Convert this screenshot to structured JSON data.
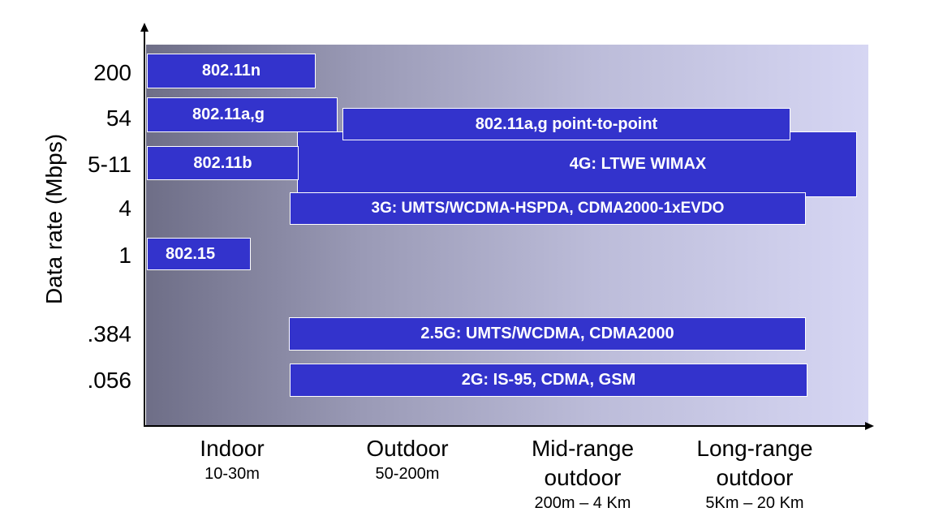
{
  "y_axis": {
    "label": "Data rate (Mbps)",
    "ticks": [
      "200",
      "54",
      "5-11",
      "4",
      "1",
      ".384",
      ".056"
    ]
  },
  "x_axis": {
    "categories": [
      {
        "name": "Indoor",
        "range": "10-30m"
      },
      {
        "name": "Outdoor",
        "range": "50-200m"
      },
      {
        "name": "Mid-range\noutdoor",
        "range": "200m – 4 Km"
      },
      {
        "name": "Long-range\noutdoor",
        "range": "5Km – 20 Km"
      }
    ]
  },
  "technologies": [
    {
      "id": "80211n",
      "label": "802.11n"
    },
    {
      "id": "80211ag",
      "label": "802.11a,g"
    },
    {
      "id": "80211ag-p2p",
      "label": "802.11a,g point-to-point"
    },
    {
      "id": "80211b",
      "label": "802.11b"
    },
    {
      "id": "4g",
      "label": "4G: LTWE WIMAX"
    },
    {
      "id": "3g",
      "label": "3G: UMTS/WCDMA-HSPDA, CDMA2000-1xEVDO"
    },
    {
      "id": "80215",
      "label": "802.15"
    },
    {
      "id": "25g",
      "label": "2.5G: UMTS/WCDMA, CDMA2000"
    },
    {
      "id": "2g",
      "label": "2G: IS-95, CDMA, GSM"
    }
  ],
  "colors": {
    "bar_fill": "#3333cc",
    "bar_border": "#ffffff",
    "bg_left": "#6e6e87",
    "bg_right": "#d6d6f3"
  }
}
